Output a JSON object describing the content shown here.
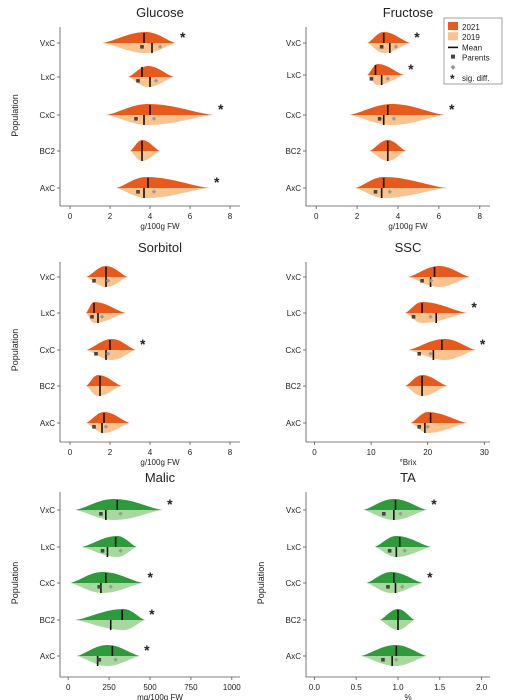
{
  "legend": {
    "items": [
      {
        "label": "2021",
        "kind": "swatch",
        "color": "#e85a1b"
      },
      {
        "label": "2019",
        "kind": "swatch",
        "color": "#f9c38f"
      },
      {
        "label": "Mean",
        "kind": "line"
      },
      {
        "label": "Parents",
        "kind": "square"
      },
      {
        "label": "",
        "kind": "diamond"
      },
      {
        "label": "sig. diff.",
        "kind": "star"
      }
    ]
  },
  "chart_data": [
    {
      "type": "violin",
      "title": "Glucose",
      "xlabel": "g/100g FW",
      "ylabel": "Population",
      "xlim": [
        -0.5,
        8.5
      ],
      "xticks": [
        0,
        2,
        4,
        6,
        8
      ],
      "colors": {
        "dark": "#e85a1b",
        "light": "#f9c38f"
      },
      "rows": [
        {
          "label": "VxC",
          "min": 1.6,
          "max": 5.3,
          "peak": 3.8,
          "meanDark": 3.7,
          "meanLight": 4.1,
          "parents": [
            3.6,
            4.5
          ],
          "sig": true
        },
        {
          "label": "LxC",
          "min": 2.9,
          "max": 5.2,
          "peak": 3.9,
          "meanDark": 3.6,
          "meanLight": 4.0,
          "parents": [
            3.4,
            4.3
          ],
          "sig": false
        },
        {
          "label": "CxC",
          "min": 1.8,
          "max": 7.2,
          "peak": 3.9,
          "meanDark": 4.0,
          "meanLight": 3.7,
          "parents": [
            3.3,
            4.2
          ],
          "sig": true
        },
        {
          "label": "BC2",
          "min": 3.0,
          "max": 4.5,
          "peak": 3.6,
          "meanDark": 3.6,
          "meanLight": 3.6,
          "parents": [],
          "sig": false
        },
        {
          "label": "AxC",
          "min": 2.3,
          "max": 7.0,
          "peak": 3.8,
          "meanDark": 3.9,
          "meanLight": 3.7,
          "parents": [
            3.4,
            4.2
          ],
          "sig": true
        }
      ]
    },
    {
      "type": "violin",
      "title": "Fructose",
      "xlabel": "g/100g FW",
      "ylabel": "",
      "xlim": [
        -0.5,
        8.5
      ],
      "xticks": [
        0,
        2,
        4,
        6,
        8
      ],
      "colors": {
        "dark": "#e85a1b",
        "light": "#f9c38f"
      },
      "rows": [
        {
          "label": "VxC",
          "min": 2.5,
          "max": 4.6,
          "peak": 3.3,
          "meanDark": 3.3,
          "meanLight": 3.6,
          "parents": [
            3.2,
            3.9
          ],
          "sig": true
        },
        {
          "label": "LxC",
          "min": 2.5,
          "max": 4.3,
          "peak": 3.0,
          "meanDark": 2.9,
          "meanLight": 3.2,
          "parents": [
            2.7,
            3.5
          ],
          "sig": true
        },
        {
          "label": "CxC",
          "min": 1.6,
          "max": 6.3,
          "peak": 3.7,
          "meanDark": 3.5,
          "meanLight": 3.3,
          "parents": [
            3.1,
            3.8
          ],
          "sig": true
        },
        {
          "label": "BC2",
          "min": 2.6,
          "max": 4.4,
          "peak": 3.5,
          "meanDark": 3.5,
          "meanLight": 3.5,
          "parents": [],
          "sig": false
        },
        {
          "label": "AxC",
          "min": 1.9,
          "max": 6.4,
          "peak": 3.3,
          "meanDark": 3.3,
          "meanLight": 3.2,
          "parents": [
            2.9,
            3.6
          ],
          "sig": false
        }
      ]
    },
    {
      "type": "violin",
      "title": "Sorbitol",
      "xlabel": "g/100g FW",
      "ylabel": "Population",
      "xlim": [
        -0.5,
        8.5
      ],
      "xticks": [
        0,
        2,
        4,
        6,
        8
      ],
      "colors": {
        "dark": "#e85a1b",
        "light": "#f9c38f"
      },
      "rows": [
        {
          "label": "VxC",
          "min": 0.8,
          "max": 2.9,
          "peak": 1.8,
          "meanDark": 1.8,
          "meanLight": 1.8,
          "parents": [
            1.2,
            1.9
          ],
          "sig": false
        },
        {
          "label": "LxC",
          "min": 0.8,
          "max": 2.8,
          "peak": 1.2,
          "meanDark": 1.2,
          "meanLight": 1.4,
          "parents": [
            1.1,
            1.6
          ],
          "sig": false
        },
        {
          "label": "CxC",
          "min": 0.8,
          "max": 3.3,
          "peak": 2.1,
          "meanDark": 2.0,
          "meanLight": 1.8,
          "parents": [
            1.3,
            1.9
          ],
          "sig": true
        },
        {
          "label": "BC2",
          "min": 0.8,
          "max": 2.6,
          "peak": 1.4,
          "meanDark": 1.5,
          "meanLight": 1.5,
          "parents": [],
          "sig": false
        },
        {
          "label": "AxC",
          "min": 0.8,
          "max": 3.0,
          "peak": 1.7,
          "meanDark": 1.7,
          "meanLight": 1.6,
          "parents": [
            1.2,
            1.8
          ],
          "sig": false
        }
      ]
    },
    {
      "type": "violin",
      "title": "SSC",
      "xlabel": "°Brix",
      "ylabel": "",
      "xlim": [
        -1.5,
        31
      ],
      "xticks": [
        0,
        10,
        20,
        30
      ],
      "colors": {
        "dark": "#e85a1b",
        "light": "#f9c38f"
      },
      "rows": [
        {
          "label": "VxC",
          "min": 16.5,
          "max": 27.5,
          "peak": 22.0,
          "meanDark": 21.2,
          "meanLight": 20.5,
          "parents": [
            19.0,
            20.6
          ],
          "sig": false
        },
        {
          "label": "LxC",
          "min": 16.0,
          "max": 27.0,
          "peak": 19.0,
          "meanDark": 19.0,
          "meanLight": 21.5,
          "parents": [
            17.5,
            20.5
          ],
          "sig": true
        },
        {
          "label": "CxC",
          "min": 16.5,
          "max": 28.5,
          "peak": 23.0,
          "meanDark": 22.5,
          "meanLight": 21.0,
          "parents": [
            18.5,
            20.5
          ],
          "sig": true
        },
        {
          "label": "BC2",
          "min": 16.0,
          "max": 23.5,
          "peak": 19.0,
          "meanDark": 19.0,
          "meanLight": 19.0,
          "parents": [],
          "sig": false
        },
        {
          "label": "AxC",
          "min": 17.0,
          "max": 27.0,
          "peak": 20.0,
          "meanDark": 20.5,
          "meanLight": 19.5,
          "parents": [
            18.5,
            20.0
          ],
          "sig": false
        }
      ]
    },
    {
      "type": "violin",
      "title": "Malic",
      "xlabel": "mg/100g FW",
      "ylabel": "Population",
      "xlim": [
        -50,
        1050
      ],
      "xticks": [
        0,
        250,
        500,
        750,
        1000
      ],
      "colors": {
        "dark": "#2f9a3c",
        "light": "#a7d99e"
      },
      "rows": [
        {
          "label": "VxC",
          "min": 40,
          "max": 580,
          "peak": 280,
          "meanDark": 300,
          "meanLight": 230,
          "parents": [
            200,
            320
          ],
          "sig": true
        },
        {
          "label": "LxC",
          "min": 80,
          "max": 420,
          "peak": 300,
          "meanDark": 290,
          "meanLight": 240,
          "parents": [
            210,
            320
          ],
          "sig": false
        },
        {
          "label": "CxC",
          "min": 10,
          "max": 460,
          "peak": 210,
          "meanDark": 230,
          "meanLight": 200,
          "parents": [
            190,
            260
          ],
          "sig": true
        },
        {
          "label": "BC2",
          "min": 40,
          "max": 470,
          "peak": 340,
          "meanDark": 330,
          "meanLight": 260,
          "parents": [],
          "sig": true
        },
        {
          "label": "AxC",
          "min": 50,
          "max": 440,
          "peak": 240,
          "meanDark": 270,
          "meanLight": 180,
          "parents": [
            190,
            290
          ],
          "sig": true
        }
      ]
    },
    {
      "type": "violin",
      "title": "TA",
      "xlabel": "%",
      "ylabel": "Population",
      "xlim": [
        -0.1,
        2.1
      ],
      "xticks": [
        0.0,
        0.5,
        1.0,
        1.5,
        2.0
      ],
      "colors": {
        "dark": "#2f9a3c",
        "light": "#a7d99e"
      },
      "rows": [
        {
          "label": "VxC",
          "min": 0.58,
          "max": 1.35,
          "peak": 0.95,
          "meanDark": 0.97,
          "meanLight": 0.95,
          "parents": [
            0.83,
            1.03
          ],
          "sig": true
        },
        {
          "label": "LxC",
          "min": 0.72,
          "max": 1.4,
          "peak": 0.98,
          "meanDark": 1.02,
          "meanLight": 0.98,
          "parents": [
            0.9,
            1.08
          ],
          "sig": false
        },
        {
          "label": "CxC",
          "min": 0.62,
          "max": 1.3,
          "peak": 0.92,
          "meanDark": 0.95,
          "meanLight": 0.97,
          "parents": [
            0.88,
            1.05
          ],
          "sig": true
        },
        {
          "label": "BC2",
          "min": 0.78,
          "max": 1.2,
          "peak": 1.0,
          "meanDark": 1.0,
          "meanLight": 1.0,
          "parents": [],
          "sig": false
        },
        {
          "label": "AxC",
          "min": 0.55,
          "max": 1.35,
          "peak": 0.97,
          "meanDark": 0.98,
          "meanLight": 0.93,
          "parents": [
            0.82,
            0.98
          ],
          "sig": false
        }
      ]
    }
  ]
}
